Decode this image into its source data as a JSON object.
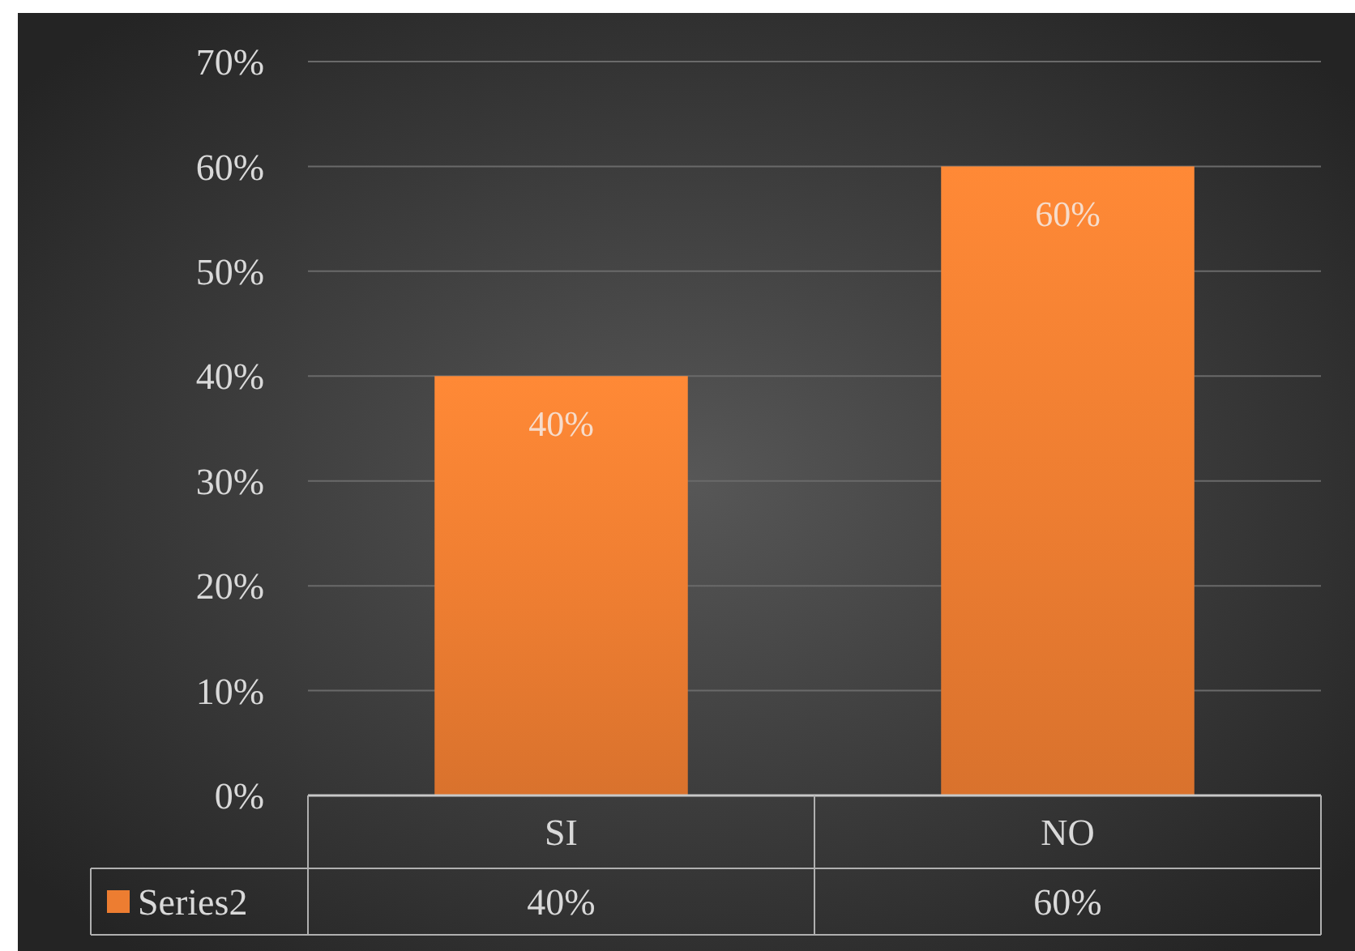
{
  "chart_data": {
    "type": "bar",
    "categories": [
      "SI",
      "NO"
    ],
    "series": [
      {
        "name": "Series2",
        "color": "#ed7d31",
        "values": [
          40,
          60
        ],
        "value_labels": [
          "40%",
          "60%"
        ]
      }
    ],
    "ylim": [
      0,
      70
    ],
    "yticks": [
      {
        "value": 0,
        "label": "0%"
      },
      {
        "value": 10,
        "label": "10%"
      },
      {
        "value": 20,
        "label": "20%"
      },
      {
        "value": 30,
        "label": "30%"
      },
      {
        "value": 40,
        "label": "40%"
      },
      {
        "value": 50,
        "label": "50%"
      },
      {
        "value": 60,
        "label": "60%"
      },
      {
        "value": 70,
        "label": "70%"
      }
    ],
    "grid": "y",
    "legend": "bottom"
  }
}
